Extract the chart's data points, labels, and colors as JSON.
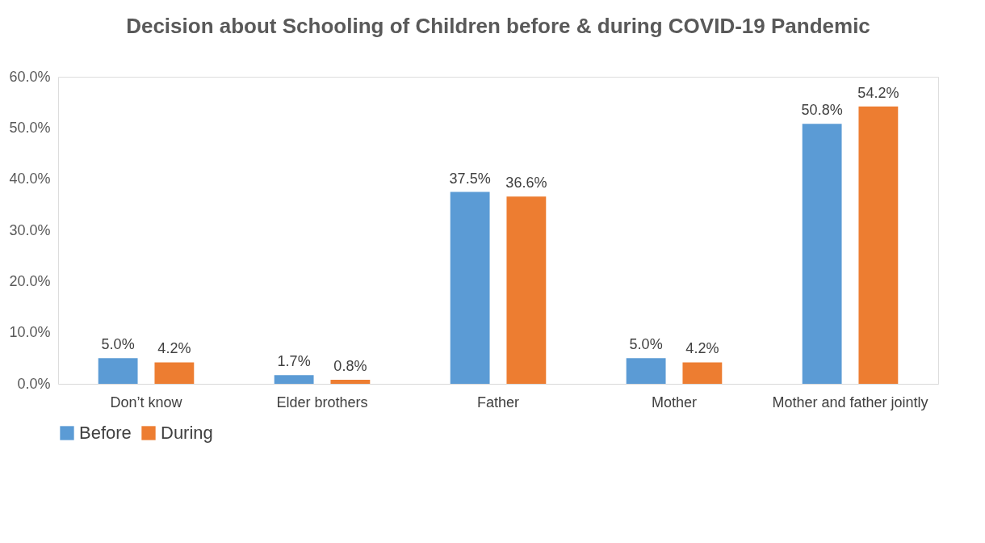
{
  "chart_data": {
    "type": "bar",
    "title": "Decision about Schooling of Children before & during COVID-19 Pandemic",
    "categories": [
      "Don’t know",
      "Elder brothers",
      "Father",
      "Mother",
      "Mother and father jointly"
    ],
    "series": [
      {
        "name": "Before",
        "color": "#5b9bd5",
        "values": [
          5.0,
          1.7,
          37.5,
          5.0,
          50.8
        ],
        "value_labels": [
          "5.0%",
          "1.7%",
          "37.5%",
          "5.0%",
          "50.8%"
        ]
      },
      {
        "name": "During",
        "color": "#ed7d31",
        "values": [
          4.2,
          0.8,
          36.6,
          4.2,
          54.2
        ],
        "value_labels": [
          "4.2%",
          "0.8%",
          "36.6%",
          "4.2%",
          "54.2%"
        ]
      }
    ],
    "ylim": [
      0,
      60
    ],
    "yticks": [
      {
        "value": 0,
        "label": "0.0%"
      },
      {
        "value": 10,
        "label": "10.0%"
      },
      {
        "value": 20,
        "label": "20.0%"
      },
      {
        "value": 30,
        "label": "30.0%"
      },
      {
        "value": 40,
        "label": "40.0%"
      },
      {
        "value": 50,
        "label": "50.0%"
      },
      {
        "value": 60,
        "label": "60.0%"
      }
    ],
    "grid": false,
    "legend": "bottom"
  }
}
